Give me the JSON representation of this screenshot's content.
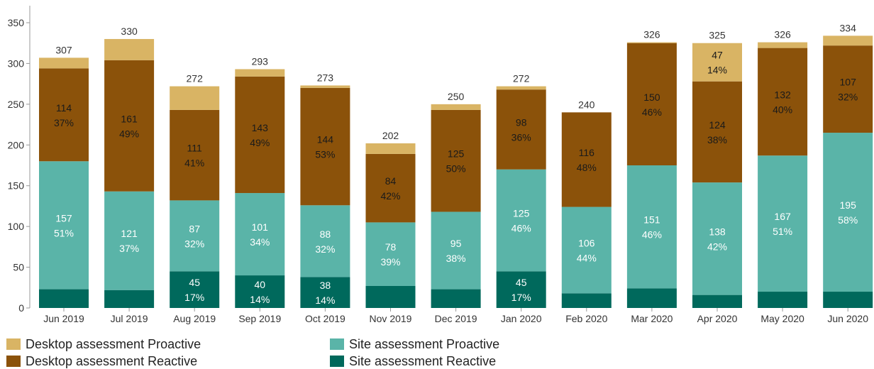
{
  "chart_data": {
    "type": "bar",
    "stacked": true,
    "categories": [
      "Jun 2019",
      "Jul 2019",
      "Aug 2019",
      "Sep 2019",
      "Oct 2019",
      "Nov 2019",
      "Dec 2019",
      "Jan 2020",
      "Feb 2020",
      "Mar 2020",
      "Apr 2020",
      "May 2020",
      "Jun 2020"
    ],
    "totals": [
      307,
      330,
      272,
      293,
      273,
      202,
      250,
      272,
      240,
      326,
      325,
      326,
      334
    ],
    "ylim": [
      0,
      350
    ],
    "yticks": [
      0,
      50,
      100,
      150,
      200,
      250,
      300,
      350
    ],
    "grid": false,
    "legend_position": "bottom",
    "series": [
      {
        "name": "Site assessment Reactive",
        "color": "#00695c",
        "values": [
          23,
          22,
          45,
          40,
          38,
          27,
          23,
          45,
          18,
          24,
          16,
          20,
          20
        ],
        "value_labels": [
          "",
          "",
          "45",
          "40",
          "38",
          "",
          "",
          "45",
          "",
          "",
          "",
          "",
          ""
        ],
        "pct_labels": [
          "",
          "",
          "17%",
          "14%",
          "14%",
          "",
          "",
          "17%",
          "",
          "",
          "",
          "",
          ""
        ]
      },
      {
        "name": "Site assessment Proactive",
        "color": "#5ab4a8",
        "values": [
          157,
          121,
          87,
          101,
          88,
          78,
          95,
          125,
          106,
          151,
          138,
          167,
          195
        ],
        "value_labels": [
          "157",
          "121",
          "87",
          "101",
          "88",
          "78",
          "95",
          "125",
          "106",
          "151",
          "138",
          "167",
          "195"
        ],
        "pct_labels": [
          "51%",
          "37%",
          "32%",
          "34%",
          "32%",
          "39%",
          "38%",
          "46%",
          "44%",
          "46%",
          "42%",
          "51%",
          "58%"
        ]
      },
      {
        "name": "Desktop assessment Reactive",
        "color": "#8b520a",
        "values": [
          114,
          161,
          111,
          143,
          144,
          84,
          125,
          98,
          116,
          150,
          124,
          132,
          107
        ],
        "value_labels": [
          "114",
          "161",
          "111",
          "143",
          "144",
          "84",
          "125",
          "98",
          "116",
          "150",
          "124",
          "132",
          "107"
        ],
        "pct_labels": [
          "37%",
          "49%",
          "41%",
          "49%",
          "53%",
          "42%",
          "50%",
          "36%",
          "48%",
          "46%",
          "38%",
          "40%",
          "32%"
        ]
      },
      {
        "name": "Desktop assessment Proactive",
        "color": "#d9b464",
        "values": [
          13,
          26,
          29,
          9,
          3,
          13,
          7,
          4,
          0,
          1,
          47,
          7,
          12
        ],
        "value_labels": [
          "",
          "",
          "",
          "",
          "",
          "",
          "",
          "",
          "",
          "",
          "47",
          "",
          ""
        ],
        "pct_labels": [
          "",
          "",
          "",
          "",
          "",
          "",
          "",
          "",
          "",
          "",
          "14%",
          "",
          ""
        ]
      }
    ]
  },
  "legend": [
    {
      "label": "Desktop assessment Proactive",
      "color": "#d9b464"
    },
    {
      "label": "Desktop assessment Reactive",
      "color": "#8b520a"
    },
    {
      "label": "Site assessment Proactive",
      "color": "#5ab4a8"
    },
    {
      "label": "Site assessment Reactive",
      "color": "#00695c"
    }
  ]
}
